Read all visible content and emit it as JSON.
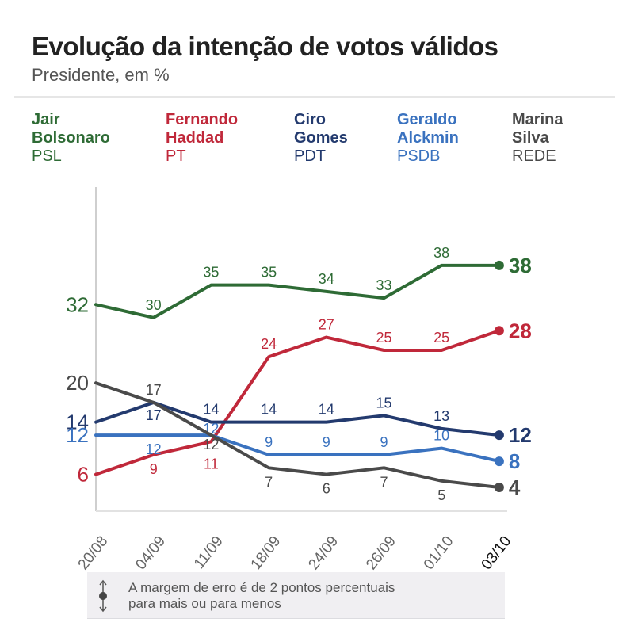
{
  "header": {
    "title": "Evolução da intenção de votos válidos",
    "subtitle": "Presidente, em %"
  },
  "legend": [
    {
      "name_line1": "Jair",
      "name_line2": "Bolsonaro",
      "party": "PSL",
      "color": "#2e6b35"
    },
    {
      "name_line1": "Fernando",
      "name_line2": "Haddad",
      "party": "PT",
      "color": "#c0283a"
    },
    {
      "name_line1": "Ciro",
      "name_line2": "Gomes",
      "party": "PDT",
      "color": "#233a6e"
    },
    {
      "name_line1": "Geraldo",
      "name_line2": "Alckmin",
      "party": "PSDB",
      "color": "#3a72bf"
    },
    {
      "name_line1": "Marina",
      "name_line2": "Silva",
      "party": "REDE",
      "color": "#4a4a4a"
    }
  ],
  "note": {
    "line1": "A margem de erro é de 2 pontos percentuais",
    "line2": "para mais ou para menos",
    "icon": "up-down-arrow-dot-icon"
  },
  "chart_data": {
    "type": "line",
    "title": "Evolução da intenção de votos válidos",
    "subtitle": "Presidente, em %",
    "xlabel": "",
    "ylabel": "",
    "x": [
      "20/08",
      "04/09",
      "11/09",
      "18/09",
      "24/09",
      "26/09",
      "01/10",
      "03/10"
    ],
    "ylim": [
      0,
      50
    ],
    "grid": false,
    "legend": "top",
    "series": [
      {
        "name": "Jair Bolsonaro (PSL)",
        "color": "#2e6b35",
        "values": [
          32,
          30,
          35,
          35,
          34,
          33,
          38,
          38
        ]
      },
      {
        "name": "Fernando Haddad (PT)",
        "color": "#c0283a",
        "values": [
          6,
          9,
          11,
          24,
          27,
          25,
          25,
          28
        ]
      },
      {
        "name": "Ciro Gomes (PDT)",
        "color": "#233a6e",
        "values": [
          14,
          17,
          14,
          14,
          14,
          15,
          13,
          12
        ]
      },
      {
        "name": "Geraldo Alckmin (PSDB)",
        "color": "#3a72bf",
        "values": [
          12,
          12,
          12,
          9,
          9,
          9,
          10,
          8
        ]
      },
      {
        "name": "Marina Silva (REDE)",
        "color": "#4a4a4a",
        "values": [
          20,
          17,
          12,
          7,
          6,
          7,
          5,
          4
        ]
      }
    ]
  }
}
